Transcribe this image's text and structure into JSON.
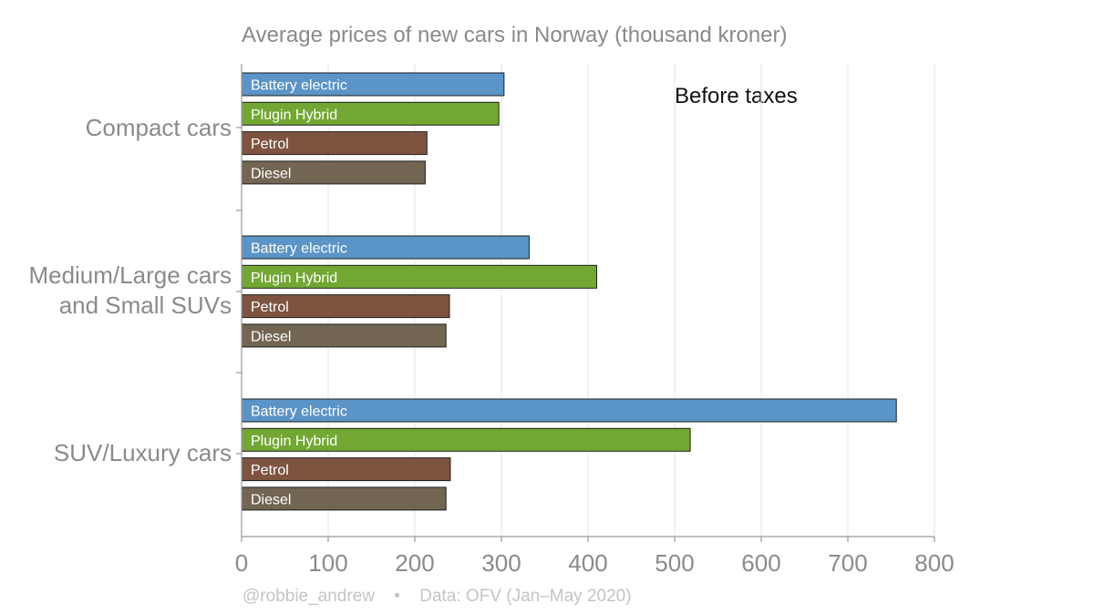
{
  "chart_data": {
    "type": "bar",
    "orientation": "horizontal",
    "title": "Average prices of new cars in Norway (thousand kroner)",
    "annotation": "Before taxes",
    "xlabel": "",
    "ylabel": "",
    "xlim": [
      0,
      800
    ],
    "xticks": [
      0,
      100,
      200,
      300,
      400,
      500,
      600,
      700,
      800
    ],
    "grid": true,
    "categories": [
      {
        "label_lines": [
          "Compact cars"
        ]
      },
      {
        "label_lines": [
          "Medium/Large cars",
          "and Small SUVs"
        ]
      },
      {
        "label_lines": [
          "SUV/Luxury cars"
        ]
      }
    ],
    "series": [
      {
        "name": "Battery electric",
        "color": "#5b94c6",
        "values": [
          303,
          332,
          756
        ]
      },
      {
        "name": "Plugin Hybrid",
        "color": "#72a733",
        "values": [
          297,
          410,
          518
        ]
      },
      {
        "name": "Petrol",
        "color": "#7e5441",
        "values": [
          214,
          240,
          241
        ]
      },
      {
        "name": "Diesel",
        "color": "#726653",
        "values": [
          212,
          236,
          236
        ]
      }
    ]
  },
  "footer": {
    "handle": "@robbie_andrew",
    "separator": "•",
    "source": "Data: OFV (Jan–May 2020)"
  }
}
